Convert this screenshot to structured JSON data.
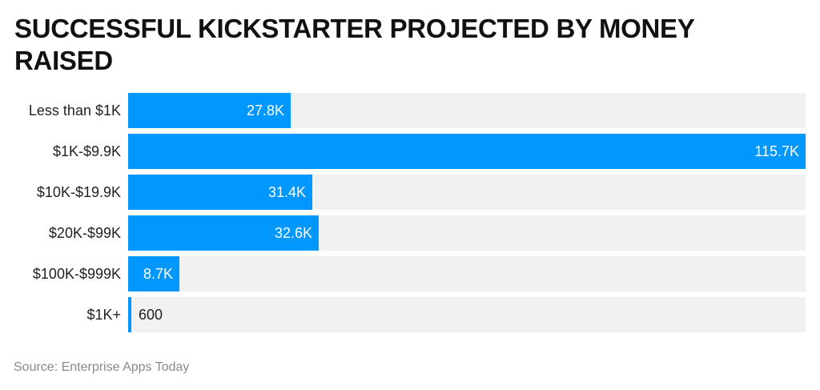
{
  "chart_data": {
    "type": "bar",
    "orientation": "horizontal",
    "title": "SUCCESSFUL KICKSTARTER PROJECTED BY MONEY RAISED",
    "categories": [
      "Less than $1K",
      "$1K-$9.9K",
      "$10K-$19.9K",
      "$20K-$99K",
      "$100K-$999K",
      "$1K+"
    ],
    "values": [
      27800,
      115700,
      31400,
      32600,
      8700,
      600
    ],
    "value_labels": [
      "27.8K",
      "115.7K",
      "31.4K",
      "32.6K",
      "8.7K",
      "600"
    ],
    "xlabel": "",
    "ylabel": "",
    "xlim": [
      0,
      115700
    ],
    "grid": false,
    "legend": null,
    "bar_color": "#0098fe",
    "track_color": "#f1f1f1"
  },
  "header": {
    "title": "SUCCESSFUL KICKSTARTER PROJECTED BY MONEY RAISED"
  },
  "footer": {
    "source": "Source: Enterprise Apps Today"
  }
}
